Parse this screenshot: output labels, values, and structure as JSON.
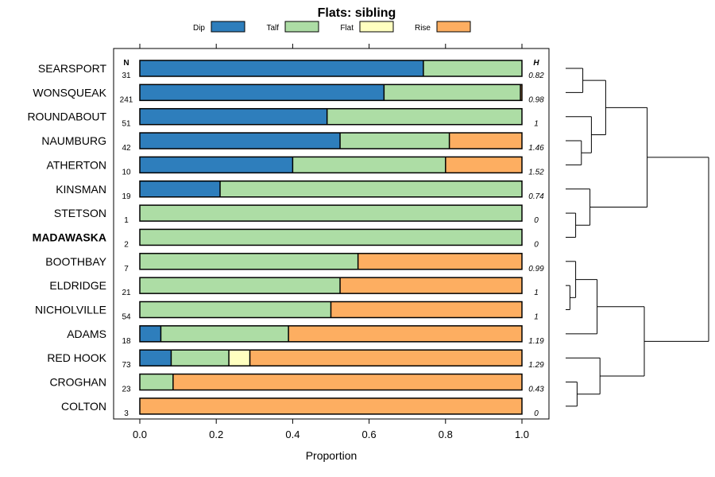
{
  "chart_data": {
    "type": "bar",
    "orientation": "horizontal",
    "stacked": true,
    "title": "Flats: sibling",
    "xlabel": "Proportion",
    "ylabel": "",
    "xlim": [
      0,
      1
    ],
    "xticks": [
      "0.0",
      "0.2",
      "0.4",
      "0.6",
      "0.8",
      "1.0"
    ],
    "xtick_values": [
      0,
      0.2,
      0.4,
      0.6,
      0.8,
      1.0
    ],
    "n_header": "N",
    "h_header": "H",
    "legend": [
      {
        "name": "Dip",
        "color": "#2E7EBC"
      },
      {
        "name": "Talf",
        "color": "#ADDDA5"
      },
      {
        "name": "Flat",
        "color": "#FFFFC0"
      },
      {
        "name": "Rise",
        "color": "#FDAE61"
      }
    ],
    "categories": [
      "SEARSPORT",
      "WONSQUEAK",
      "ROUNDABOUT",
      "NAUMBURG",
      "ATHERTON",
      "KINSMAN",
      "STETSON",
      "MADAWASKA",
      "BOOTHBAY",
      "ELDRIDGE",
      "NICHOLVILLE",
      "ADAMS",
      "RED HOOK",
      "CROGHAN",
      "COLTON"
    ],
    "highlighted": "MADAWASKA",
    "n": [
      "31",
      "241",
      "51",
      "42",
      "10",
      "19",
      "1",
      "2",
      "7",
      "21",
      "54",
      "18",
      "73",
      "23",
      "3"
    ],
    "h": [
      "0.82",
      "0.98",
      "1",
      "1.46",
      "1.52",
      "0.74",
      "0",
      "0",
      "0.99",
      "1",
      "1",
      "1.19",
      "1.29",
      "0.43",
      "0"
    ],
    "series": [
      {
        "name": "Dip",
        "values": [
          0.742,
          0.639,
          0.49,
          0.524,
          0.4,
          0.21,
          0,
          0,
          0,
          0,
          0,
          0.055,
          0.082,
          0,
          0
        ]
      },
      {
        "name": "Talf",
        "values": [
          0.258,
          0.357,
          0.51,
          0.286,
          0.4,
          0.79,
          1.0,
          1.0,
          0.571,
          0.524,
          0.5,
          0.334,
          0.151,
          0.087,
          0
        ]
      },
      {
        "name": "Flat",
        "values": [
          0,
          0,
          0,
          0,
          0,
          0,
          0,
          0,
          0,
          0,
          0,
          0,
          0.055,
          0,
          0
        ]
      },
      {
        "name": "Rise",
        "values": [
          0,
          0.004,
          0,
          0.19,
          0.2,
          0,
          0,
          0,
          0.429,
          0.476,
          0.5,
          0.611,
          0.712,
          0.913,
          1.0
        ]
      }
    ],
    "dendrogram": {
      "note": "hierarchical clustering of rows (merge heights in relative units, 0 = leaves, 1 = root)",
      "merges": [
        {
          "a": 0,
          "b": 1,
          "height": 0.12
        },
        {
          "a": 3,
          "b": 4,
          "height": 0.11
        },
        {
          "a": 2,
          "b": "m1",
          "height": 0.18
        },
        {
          "a": "m0",
          "b": "m2",
          "height": 0.28
        },
        {
          "a": 6,
          "b": 7,
          "height": 0.07
        },
        {
          "a": 5,
          "b": "m4",
          "height": 0.17
        },
        {
          "a": "m3",
          "b": "m5",
          "height": 0.57
        },
        {
          "a": 9,
          "b": 10,
          "height": 0.03
        },
        {
          "a": 8,
          "b": "m7",
          "height": 0.07
        },
        {
          "a": 11,
          "b": "m8",
          "height": 0.22
        },
        {
          "a": 13,
          "b": 14,
          "height": 0.08
        },
        {
          "a": 12,
          "b": "m10",
          "height": 0.24
        },
        {
          "a": "m9",
          "b": "m11",
          "height": 0.55
        },
        {
          "a": "m6",
          "b": "m12",
          "height": 1.0
        }
      ]
    }
  }
}
